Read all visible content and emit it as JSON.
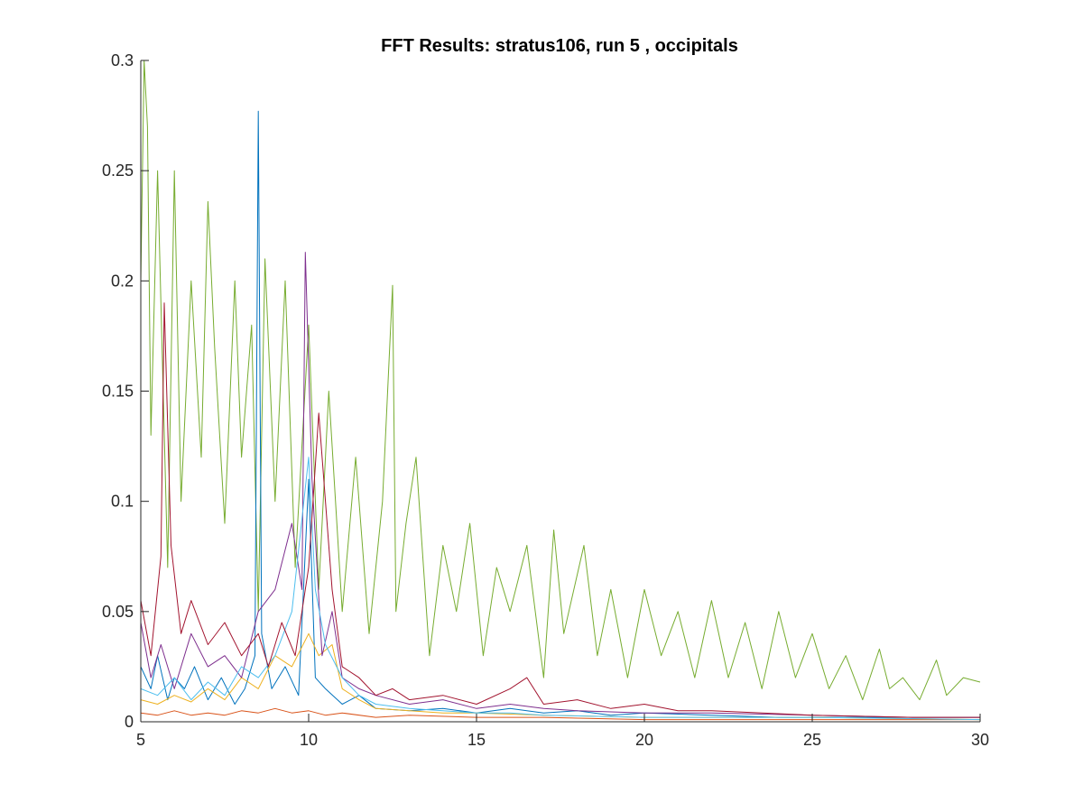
{
  "chart_data": {
    "type": "line",
    "title": "FFT Results: stratus106, run 5 , occipitals",
    "xlabel": "",
    "ylabel": "",
    "xlim": [
      5,
      30
    ],
    "ylim": [
      0,
      0.3
    ],
    "x_ticks": [
      5,
      10,
      15,
      20,
      25,
      30
    ],
    "x_tick_labels": [
      "5",
      "10",
      "15",
      "20",
      "25",
      "30"
    ],
    "y_ticks": [
      0,
      0.05,
      0.1,
      0.15,
      0.2,
      0.25,
      0.3
    ],
    "y_tick_labels": [
      "0",
      "0.05",
      "0.1",
      "0.15",
      "0.2",
      "0.25",
      "0.3"
    ],
    "grid": false,
    "legend": "none",
    "series": [
      {
        "color": "#77AC30",
        "x": [
          5.0,
          5.1,
          5.2,
          5.3,
          5.5,
          5.6,
          5.8,
          6.0,
          6.2,
          6.5,
          6.8,
          7.0,
          7.2,
          7.5,
          7.8,
          8.0,
          8.3,
          8.5,
          8.7,
          9.0,
          9.3,
          9.6,
          10.0,
          10.3,
          10.6,
          11.0,
          11.4,
          11.8,
          12.2,
          12.5,
          12.6,
          12.9,
          13.2,
          13.6,
          14.0,
          14.4,
          14.8,
          15.2,
          15.6,
          16.0,
          16.5,
          17.0,
          17.3,
          17.6,
          18.2,
          18.6,
          19.0,
          19.5,
          20.0,
          20.5,
          21.0,
          21.5,
          22.0,
          22.5,
          23.0,
          23.5,
          24.0,
          24.5,
          25.0,
          25.5,
          26.0,
          26.5,
          27.0,
          27.3,
          27.7,
          28.2,
          28.7,
          29.0,
          29.5,
          30.0
        ],
        "y": [
          0.2,
          0.3,
          0.27,
          0.13,
          0.25,
          0.19,
          0.07,
          0.25,
          0.1,
          0.2,
          0.12,
          0.236,
          0.17,
          0.09,
          0.2,
          0.12,
          0.18,
          0.05,
          0.21,
          0.1,
          0.2,
          0.07,
          0.18,
          0.06,
          0.15,
          0.05,
          0.12,
          0.04,
          0.1,
          0.198,
          0.05,
          0.09,
          0.12,
          0.03,
          0.08,
          0.05,
          0.09,
          0.03,
          0.07,
          0.05,
          0.08,
          0.02,
          0.087,
          0.04,
          0.08,
          0.03,
          0.06,
          0.02,
          0.06,
          0.03,
          0.05,
          0.02,
          0.055,
          0.02,
          0.045,
          0.015,
          0.05,
          0.02,
          0.04,
          0.015,
          0.03,
          0.01,
          0.033,
          0.015,
          0.02,
          0.01,
          0.028,
          0.012,
          0.02,
          0.018
        ]
      },
      {
        "color": "#0072BD",
        "x": [
          5.0,
          5.3,
          5.5,
          5.8,
          6.0,
          6.3,
          6.6,
          7.0,
          7.4,
          7.8,
          8.1,
          8.4,
          8.5,
          8.6,
          8.9,
          9.3,
          9.7,
          10.0,
          10.2,
          10.5,
          11.0,
          11.5,
          12.0,
          13.0,
          14.0,
          15.0,
          16.0,
          17.0,
          18.0,
          19.0,
          20.0,
          22.0,
          24.0,
          26.0,
          28.0,
          30.0
        ],
        "y": [
          0.025,
          0.015,
          0.03,
          0.01,
          0.02,
          0.015,
          0.025,
          0.01,
          0.02,
          0.008,
          0.015,
          0.03,
          0.277,
          0.04,
          0.015,
          0.025,
          0.012,
          0.11,
          0.02,
          0.015,
          0.008,
          0.012,
          0.006,
          0.005,
          0.006,
          0.004,
          0.006,
          0.004,
          0.005,
          0.003,
          0.004,
          0.003,
          0.002,
          0.002,
          0.002,
          0.002
        ]
      },
      {
        "color": "#D95319",
        "x": [
          5.0,
          5.5,
          6.0,
          6.5,
          7.0,
          7.5,
          8.0,
          8.5,
          9.0,
          9.5,
          10.0,
          10.5,
          11.0,
          12.0,
          13.0,
          15.0,
          17.0,
          20.0,
          25.0,
          30.0
        ],
        "y": [
          0.004,
          0.003,
          0.005,
          0.003,
          0.004,
          0.003,
          0.005,
          0.004,
          0.006,
          0.004,
          0.005,
          0.003,
          0.004,
          0.002,
          0.003,
          0.002,
          0.002,
          0.001,
          0.001,
          0.001
        ]
      },
      {
        "color": "#EDB120",
        "x": [
          5.0,
          5.5,
          6.0,
          6.5,
          7.0,
          7.5,
          8.0,
          8.5,
          9.0,
          9.5,
          10.0,
          10.3,
          10.7,
          11.0,
          11.5,
          12.0,
          13.0,
          14.0,
          15.0,
          17.0,
          20.0,
          25.0,
          30.0
        ],
        "y": [
          0.01,
          0.008,
          0.012,
          0.009,
          0.015,
          0.01,
          0.02,
          0.015,
          0.03,
          0.025,
          0.04,
          0.03,
          0.035,
          0.015,
          0.01,
          0.006,
          0.005,
          0.004,
          0.004,
          0.003,
          0.002,
          0.002,
          0.001
        ]
      },
      {
        "color": "#7E2F8E",
        "x": [
          5.0,
          5.3,
          5.6,
          6.0,
          6.5,
          7.0,
          7.5,
          8.0,
          8.5,
          9.0,
          9.5,
          9.8,
          9.9,
          10.1,
          10.4,
          10.7,
          11.0,
          11.5,
          12.0,
          13.0,
          14.0,
          15.0,
          16.0,
          17.0,
          18.0,
          20.0,
          22.0,
          25.0,
          28.0,
          30.0
        ],
        "y": [
          0.045,
          0.02,
          0.035,
          0.015,
          0.04,
          0.025,
          0.03,
          0.02,
          0.05,
          0.06,
          0.09,
          0.06,
          0.213,
          0.11,
          0.03,
          0.05,
          0.02,
          0.015,
          0.012,
          0.008,
          0.01,
          0.006,
          0.008,
          0.006,
          0.005,
          0.004,
          0.004,
          0.003,
          0.002,
          0.002
        ]
      },
      {
        "color": "#4DBEEE",
        "x": [
          5.0,
          5.5,
          6.0,
          6.5,
          7.0,
          7.5,
          8.0,
          8.5,
          9.0,
          9.5,
          10.0,
          10.2,
          10.5,
          11.0,
          11.5,
          12.0,
          13.0,
          14.0,
          15.0,
          16.0,
          17.0,
          20.0,
          25.0,
          30.0
        ],
        "y": [
          0.015,
          0.012,
          0.02,
          0.01,
          0.018,
          0.012,
          0.025,
          0.02,
          0.03,
          0.05,
          0.12,
          0.06,
          0.035,
          0.02,
          0.012,
          0.008,
          0.006,
          0.005,
          0.004,
          0.004,
          0.003,
          0.002,
          0.002,
          0.001
        ]
      },
      {
        "color": "#A2142F",
        "x": [
          5.0,
          5.3,
          5.6,
          5.7,
          5.9,
          6.2,
          6.5,
          7.0,
          7.5,
          8.0,
          8.5,
          8.8,
          9.2,
          9.6,
          10.0,
          10.3,
          10.7,
          11.0,
          11.5,
          12.0,
          12.5,
          13.0,
          14.0,
          15.0,
          16.0,
          16.5,
          17.0,
          18.0,
          19.0,
          20.0,
          21.0,
          22.0,
          25.0,
          28.0,
          30.0
        ],
        "y": [
          0.055,
          0.03,
          0.075,
          0.19,
          0.08,
          0.04,
          0.055,
          0.035,
          0.045,
          0.03,
          0.04,
          0.025,
          0.045,
          0.03,
          0.07,
          0.14,
          0.06,
          0.025,
          0.02,
          0.012,
          0.015,
          0.01,
          0.012,
          0.008,
          0.015,
          0.02,
          0.008,
          0.01,
          0.006,
          0.008,
          0.005,
          0.005,
          0.003,
          0.002,
          0.002
        ]
      }
    ]
  }
}
